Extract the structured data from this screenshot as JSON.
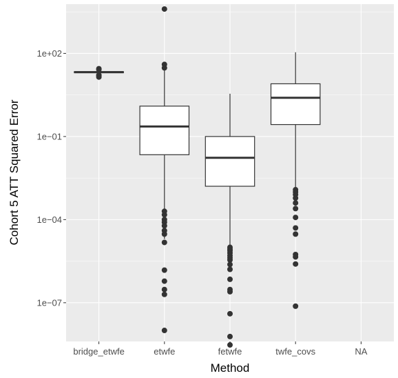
{
  "chart_data": {
    "type": "boxplot",
    "title": "",
    "xlabel": "Method",
    "ylabel": "Cohort 5 ATT Squared Error",
    "y_scale": "log10",
    "ylim": [
      4e-09,
      6000
    ],
    "grid": true,
    "background": "#ebebeb",
    "y_ticks": [
      {
        "value": 100,
        "label": "1e+02"
      },
      {
        "value": 0.1,
        "label": "1e−01"
      },
      {
        "value": 0.0001,
        "label": "1e−04"
      },
      {
        "value": 1e-07,
        "label": "1e−07"
      }
    ],
    "categories": [
      "bridge_etwfe",
      "etwfe",
      "fetwfe",
      "twfe_covs",
      "NA"
    ],
    "boxes": [
      {
        "category": "bridge_etwfe",
        "whisker_low": 17,
        "q1": 20,
        "median": 21,
        "q3": 22,
        "whisker_high": 24,
        "outliers": [
          14,
          15.5,
          16.5,
          26,
          28
        ]
      },
      {
        "category": "etwfe",
        "whisker_low": 2e-05,
        "q1": 0.022,
        "median": 0.23,
        "q3": 1.25,
        "whisker_high": 25,
        "outliers": [
          4000,
          40,
          30,
          0.0002,
          0.00015,
          0.0001,
          8e-05,
          6e-05,
          4e-05,
          3e-05,
          1.5e-05,
          1.5e-06,
          6e-07,
          3e-07,
          2e-07,
          1e-08
        ]
      },
      {
        "category": "fetwfe",
        "whisker_low": 1.2e-05,
        "q1": 0.0016,
        "median": 0.017,
        "q3": 0.1,
        "whisker_high": 3.5,
        "outliers": [
          1e-05,
          8.5e-06,
          7.5e-06,
          6.2e-06,
          5e-06,
          4.2e-06,
          3.5e-06,
          2.4e-06,
          1.6e-06,
          7e-07,
          3e-07,
          2.5e-07,
          4e-08,
          6e-09,
          3e-09
        ]
      },
      {
        "category": "twfe_covs",
        "whisker_low": 0.0015,
        "q1": 0.27,
        "median": 2.5,
        "q3": 8,
        "whisker_high": 110,
        "outliers": [
          0.0012,
          0.001,
          0.0008,
          0.0006,
          0.0004,
          0.00025,
          0.00012,
          5e-05,
          3e-05,
          5.5e-06,
          4.5e-06,
          2.5e-06,
          7.5e-08
        ]
      },
      {
        "category": "NA",
        "whisker_low": null,
        "q1": null,
        "median": null,
        "q3": null,
        "whisker_high": null,
        "outliers": []
      }
    ]
  }
}
